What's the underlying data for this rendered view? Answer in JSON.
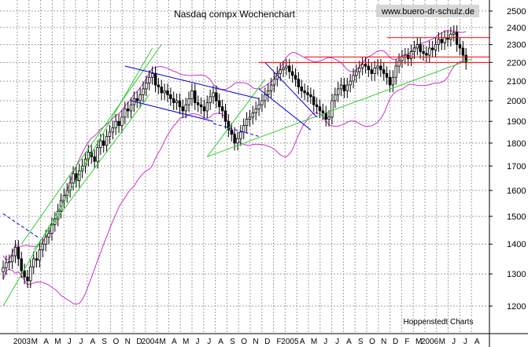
{
  "chart_data": {
    "type": "candlestick",
    "title": "Nasdaq compx Wochenchart",
    "watermark": "www.buero-dr-schulz.de",
    "source": "Hoppenstedt Charts",
    "y_scale": "log",
    "ylim": [
      1150,
      2560
    ],
    "y_ticks": [
      1200,
      1300,
      1400,
      1500,
      1600,
      1700,
      1800,
      1900,
      2000,
      2100,
      2200,
      2300,
      2400,
      2500
    ],
    "x_year_labels": [
      "2003",
      "2004",
      "2005",
      "2006"
    ],
    "x_month_labels": [
      "F",
      "M",
      "A",
      "M",
      "J",
      "J",
      "A",
      "S",
      "O",
      "N",
      "D",
      "F",
      "M",
      "A",
      "M",
      "J",
      "J",
      "A",
      "S",
      "O",
      "N",
      "D",
      "F",
      "M",
      "A",
      "M",
      "J",
      "J",
      "A",
      "S",
      "O",
      "N",
      "D",
      "F",
      "M",
      "A",
      "M",
      "J",
      "J",
      "A"
    ],
    "colors": {
      "candle": "#000000",
      "bollinger": "#cc33cc",
      "trend_green": "#33cc33",
      "trend_blue": "#0000cc",
      "resistance_red": "#ff0000",
      "grid": "#a0a0a0"
    },
    "weekly_close": [
      1320,
      1337,
      1340,
      1360,
      1389,
      1350,
      1310,
      1290,
      1278,
      1323,
      1350,
      1345,
      1380,
      1400,
      1425,
      1438,
      1470,
      1490,
      1520,
      1560,
      1580,
      1600,
      1630,
      1668,
      1640,
      1680,
      1700,
      1730,
      1760,
      1740,
      1720,
      1780,
      1810,
      1790,
      1830,
      1850,
      1870,
      1900,
      1880,
      1920,
      1960,
      1950,
      1980,
      2010,
      2000,
      2030,
      2060,
      2090,
      2120,
      2140,
      2080,
      2070,
      2040,
      2050,
      2030,
      2010,
      1990,
      2000,
      1970,
      1950,
      1980,
      2010,
      2050,
      1990,
      1980,
      1970,
      1950,
      1990,
      2020,
      2040,
      2000,
      1970,
      1950,
      1900,
      1860,
      1840,
      1800,
      1820,
      1850,
      1880,
      1910,
      1920,
      1940,
      1960,
      1980,
      2000,
      2030,
      2050,
      2080,
      2110,
      2140,
      2160,
      2170,
      2180,
      2150,
      2130,
      2110,
      2070,
      2050,
      2040,
      2030,
      2020,
      1980,
      1970,
      1950,
      1940,
      1910,
      1920,
      2000,
      2030,
      2060,
      2080,
      2050,
      2080,
      2100,
      2130,
      2150,
      2170,
      2190,
      2180,
      2160,
      2140,
      2170,
      2180,
      2160,
      2140,
      2120,
      2080,
      2120,
      2180,
      2210,
      2230,
      2240,
      2220,
      2260,
      2280,
      2300,
      2260,
      2250,
      2240,
      2280,
      2270,
      2300,
      2330,
      2310,
      2340,
      2330,
      2360,
      2370,
      2300,
      2280,
      2240,
      2200
    ]
  },
  "indicators": {
    "green_channel": [
      {
        "from_week": 0,
        "from": 1200,
        "to_week": 49,
        "to": 2280
      },
      {
        "from_week": 6,
        "from": 1400,
        "to_week": 52,
        "to": 2300
      },
      {
        "from_week": 10,
        "from": 1380,
        "to_week": 48,
        "to": 2030
      }
    ],
    "green_support": {
      "from_week": 67,
      "from": 1740,
      "to_week": 154,
      "to": 2220
    },
    "green_steep": {
      "from_week": 67,
      "from": 1740,
      "to_week": 86,
      "to": 2110
    },
    "blue_channel_2004": [
      {
        "from_week": 40,
        "from": 2180,
        "to_week": 84,
        "to": 2010
      },
      {
        "from_week": 42,
        "from": 2000,
        "to_week": 69,
        "to": 1900
      }
    ],
    "blue_dashed_2003": {
      "from_week": 0,
      "from": 1510,
      "to_week": 12,
      "to": 1420
    },
    "blue_dashed_2004": {
      "from_week": 69,
      "from": 1890,
      "to_week": 84,
      "to": 1830
    },
    "blue_channel_2005": [
      {
        "from_week": 86,
        "from": 2200,
        "to_week": 103,
        "to": 1920
      },
      {
        "from_week": 84,
        "from": 2060,
        "to_week": 101,
        "to": 1860
      }
    ],
    "red_resistance": [
      {
        "from_week": 84,
        "level": 2200,
        "to_week": 160
      },
      {
        "from_week": 99,
        "level": 2230,
        "to_week": 160
      },
      {
        "from_week": 126,
        "level": 2340,
        "to_week": 160
      }
    ]
  }
}
